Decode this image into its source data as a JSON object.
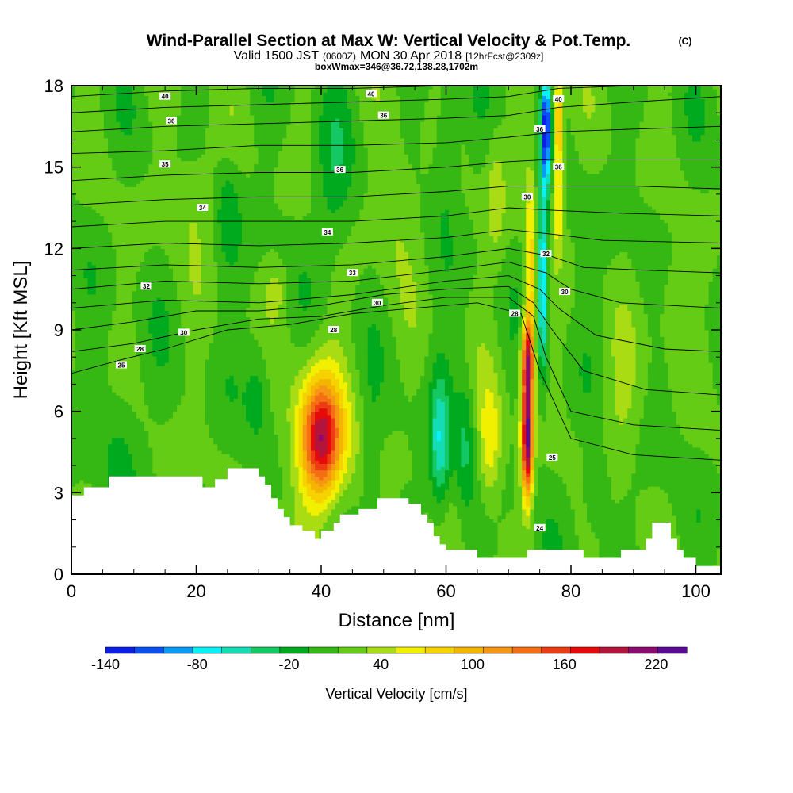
{
  "chart_data": {
    "type": "heatmap",
    "title": "Wind-Parallel Section at Max W: Vertical Velocity & Pot.Temp.",
    "title_mark": "(C)",
    "subtitle_prefix": "Valid 1500 JST",
    "subtitle_utc": "(0600Z)",
    "subtitle_date": "MON 30 Apr 2018",
    "subtitle_fcst": "[12hrFcst@2309z]",
    "subtitle2": "boxWmax=346@36.72,138.28,1702m",
    "xlabel": "Distance [nm]",
    "ylabel": "Height [Kft MSL]",
    "xlim": [
      0,
      104
    ],
    "ylim": [
      0,
      18
    ],
    "x_ticks": [
      "0",
      "20",
      "40",
      "60",
      "80",
      "100"
    ],
    "y_ticks": [
      "0",
      "3",
      "6",
      "9",
      "12",
      "15",
      "18"
    ],
    "colorbar": {
      "label": "Vertical Velocity [cm/s]",
      "tick_labels": [
        "-140",
        "-80",
        "-20",
        "40",
        "100",
        "160",
        "220"
      ],
      "levels": [
        -140,
        -120,
        -100,
        -80,
        -60,
        -40,
        -20,
        0,
        20,
        40,
        60,
        80,
        100,
        120,
        140,
        160,
        180,
        200,
        220,
        240
      ],
      "colors": [
        "#0a1ee6",
        "#0a50f0",
        "#0a9bf5",
        "#0af0f5",
        "#14dcb4",
        "#14c864",
        "#00aa1e",
        "#36b814",
        "#64cc14",
        "#aadc14",
        "#f0f000",
        "#f5d200",
        "#f5b400",
        "#f59614",
        "#f56e14",
        "#ec3c14",
        "#e60a0a",
        "#b4143c",
        "#8c0a6e",
        "#5a0a96"
      ]
    },
    "terrain_kft": [
      [
        0,
        2.9
      ],
      [
        2,
        3.2
      ],
      [
        6,
        3.6
      ],
      [
        20,
        3.6
      ],
      [
        21,
        3.2
      ],
      [
        23,
        3.5
      ],
      [
        25,
        3.9
      ],
      [
        29,
        3.9
      ],
      [
        30,
        3.6
      ],
      [
        31,
        3.3
      ],
      [
        32,
        2.8
      ],
      [
        33,
        2.4
      ],
      [
        34,
        2.1
      ],
      [
        35,
        1.8
      ],
      [
        37,
        1.6
      ],
      [
        39,
        1.3
      ],
      [
        40,
        1.6
      ],
      [
        42,
        1.9
      ],
      [
        43,
        2.2
      ],
      [
        46,
        2.4
      ],
      [
        49,
        2.8
      ],
      [
        52,
        2.8
      ],
      [
        54,
        2.6
      ],
      [
        56,
        2.2
      ],
      [
        57,
        1.9
      ],
      [
        58,
        1.4
      ],
      [
        59,
        1.1
      ],
      [
        60,
        0.9
      ],
      [
        64,
        0.9
      ],
      [
        65,
        0.6
      ],
      [
        72,
        0.6
      ],
      [
        73,
        0.9
      ],
      [
        81,
        0.9
      ],
      [
        82,
        0.6
      ],
      [
        87,
        0.6
      ],
      [
        88,
        0.9
      ],
      [
        92,
        1.3
      ],
      [
        93,
        1.9
      ],
      [
        95,
        1.9
      ],
      [
        96,
        1.3
      ],
      [
        97,
        0.9
      ],
      [
        98,
        0.6
      ],
      [
        100,
        0.3
      ],
      [
        104,
        0.3
      ]
    ],
    "contour_labels": [
      {
        "text": "40",
        "x": 15,
        "y": 17.6
      },
      {
        "text": "40",
        "x": 48,
        "y": 17.7
      },
      {
        "text": "40",
        "x": 78,
        "y": 17.5
      },
      {
        "text": "36",
        "x": 16,
        "y": 16.7
      },
      {
        "text": "36",
        "x": 50,
        "y": 16.9
      },
      {
        "text": "36",
        "x": 75,
        "y": 16.4
      },
      {
        "text": "35",
        "x": 15,
        "y": 15.1
      },
      {
        "text": "36",
        "x": 43,
        "y": 14.9
      },
      {
        "text": "36",
        "x": 78,
        "y": 15.0
      },
      {
        "text": "34",
        "x": 21,
        "y": 13.5
      },
      {
        "text": "34",
        "x": 41,
        "y": 12.6
      },
      {
        "text": "30",
        "x": 73,
        "y": 13.9
      },
      {
        "text": "32",
        "x": 76,
        "y": 11.8
      },
      {
        "text": "32",
        "x": 12,
        "y": 10.6
      },
      {
        "text": "33",
        "x": 45,
        "y": 11.1
      },
      {
        "text": "30",
        "x": 49,
        "y": 10.0
      },
      {
        "text": "30",
        "x": 79,
        "y": 10.4
      },
      {
        "text": "28",
        "x": 71,
        "y": 9.6
      },
      {
        "text": "30",
        "x": 18,
        "y": 8.9
      },
      {
        "text": "28",
        "x": 42,
        "y": 9.0
      },
      {
        "text": "28",
        "x": 11,
        "y": 8.3
      },
      {
        "text": "25",
        "x": 8,
        "y": 7.7
      },
      {
        "text": "25",
        "x": 77,
        "y": 4.3
      },
      {
        "text": "24",
        "x": 75,
        "y": 1.7
      }
    ],
    "theta_lines": [
      [
        [
          0,
          7.4
        ],
        [
          8,
          7.9
        ],
        [
          15,
          8.3
        ],
        [
          25,
          9.0
        ],
        [
          35,
          9.2
        ],
        [
          45,
          9.6
        ],
        [
          55,
          9.8
        ],
        [
          65,
          10.0
        ],
        [
          72,
          9.6
        ],
        [
          75,
          7.5
        ],
        [
          80,
          5.0
        ],
        [
          90,
          4.4
        ],
        [
          104,
          4.2
        ]
      ],
      [
        [
          0,
          8.2
        ],
        [
          10,
          8.5
        ],
        [
          20,
          9.0
        ],
        [
          30,
          9.4
        ],
        [
          40,
          9.5
        ],
        [
          50,
          9.9
        ],
        [
          60,
          10.2
        ],
        [
          70,
          10.2
        ],
        [
          74,
          9.5
        ],
        [
          76,
          8.0
        ],
        [
          80,
          6.0
        ],
        [
          90,
          5.5
        ],
        [
          104,
          5.3
        ]
      ],
      [
        [
          0,
          9.0
        ],
        [
          10,
          9.3
        ],
        [
          20,
          9.7
        ],
        [
          30,
          9.7
        ],
        [
          40,
          9.9
        ],
        [
          50,
          10.3
        ],
        [
          60,
          10.5
        ],
        [
          70,
          10.6
        ],
        [
          74,
          10.0
        ],
        [
          77,
          9.0
        ],
        [
          82,
          7.5
        ],
        [
          92,
          6.8
        ],
        [
          104,
          6.6
        ]
      ],
      [
        [
          0,
          9.8
        ],
        [
          15,
          10.1
        ],
        [
          30,
          10.0
        ],
        [
          45,
          10.3
        ],
        [
          60,
          10.8
        ],
        [
          70,
          11.0
        ],
        [
          75,
          10.5
        ],
        [
          78,
          9.8
        ],
        [
          84,
          8.8
        ],
        [
          95,
          8.3
        ],
        [
          104,
          8.2
        ]
      ],
      [
        [
          0,
          10.5
        ],
        [
          15,
          10.8
        ],
        [
          30,
          10.7
        ],
        [
          45,
          10.8
        ],
        [
          60,
          11.2
        ],
        [
          70,
          11.5
        ],
        [
          76,
          11.1
        ],
        [
          80,
          10.5
        ],
        [
          88,
          10.0
        ],
        [
          104,
          9.8
        ]
      ],
      [
        [
          0,
          11.2
        ],
        [
          15,
          11.4
        ],
        [
          30,
          11.3
        ],
        [
          45,
          11.4
        ],
        [
          60,
          11.7
        ],
        [
          70,
          12.0
        ],
        [
          77,
          11.7
        ],
        [
          82,
          11.3
        ],
        [
          92,
          11.2
        ],
        [
          104,
          11.1
        ]
      ],
      [
        [
          0,
          12.0
        ],
        [
          15,
          12.2
        ],
        [
          30,
          12.1
        ],
        [
          45,
          12.2
        ],
        [
          60,
          12.4
        ],
        [
          70,
          12.7
        ],
        [
          78,
          12.5
        ],
        [
          85,
          12.3
        ],
        [
          104,
          12.2
        ]
      ],
      [
        [
          0,
          12.8
        ],
        [
          15,
          13.0
        ],
        [
          30,
          13.0
        ],
        [
          45,
          13.0
        ],
        [
          60,
          13.2
        ],
        [
          70,
          13.5
        ],
        [
          78,
          13.4
        ],
        [
          88,
          13.3
        ],
        [
          104,
          13.2
        ]
      ],
      [
        [
          0,
          13.6
        ],
        [
          15,
          13.8
        ],
        [
          30,
          13.9
        ],
        [
          45,
          13.9
        ],
        [
          60,
          14.1
        ],
        [
          70,
          14.3
        ],
        [
          78,
          14.3
        ],
        [
          90,
          14.3
        ],
        [
          104,
          14.2
        ]
      ],
      [
        [
          0,
          14.5
        ],
        [
          15,
          14.7
        ],
        [
          30,
          14.8
        ],
        [
          45,
          14.8
        ],
        [
          60,
          15.0
        ],
        [
          70,
          15.2
        ],
        [
          78,
          15.3
        ],
        [
          90,
          15.3
        ],
        [
          104,
          15.3
        ]
      ],
      [
        [
          0,
          15.5
        ],
        [
          15,
          15.6
        ],
        [
          30,
          15.8
        ],
        [
          45,
          15.8
        ],
        [
          60,
          15.9
        ],
        [
          70,
          16.1
        ],
        [
          78,
          16.3
        ],
        [
          90,
          16.4
        ],
        [
          104,
          16.5
        ]
      ],
      [
        [
          0,
          16.3
        ],
        [
          15,
          16.5
        ],
        [
          30,
          16.6
        ],
        [
          45,
          16.7
        ],
        [
          60,
          16.8
        ],
        [
          70,
          16.9
        ],
        [
          78,
          17.2
        ],
        [
          90,
          17.4
        ],
        [
          104,
          17.6
        ]
      ],
      [
        [
          0,
          17.0
        ],
        [
          15,
          17.2
        ],
        [
          30,
          17.3
        ],
        [
          45,
          17.4
        ],
        [
          60,
          17.5
        ],
        [
          70,
          17.6
        ],
        [
          78,
          17.9
        ],
        [
          90,
          18.0
        ]
      ],
      [
        [
          0,
          17.6
        ],
        [
          15,
          17.8
        ],
        [
          30,
          17.9
        ],
        [
          45,
          17.9
        ],
        [
          60,
          18.0
        ]
      ]
    ],
    "w_cells": [
      {
        "x": 40,
        "y": 5.0,
        "sx": 3.0,
        "sy": 2.0,
        "w": 140
      },
      {
        "x": 40,
        "y": 5.0,
        "sx": 5.0,
        "sy": 3.0,
        "w": 60
      },
      {
        "x": 73,
        "y": 5.0,
        "sx": 0.9,
        "sy": 2.2,
        "w": 220
      },
      {
        "x": 73,
        "y": 8.0,
        "sx": 1.0,
        "sy": 1.5,
        "w": 150
      },
      {
        "x": 73.5,
        "y": 11.0,
        "sx": 0.9,
        "sy": 4.0,
        "w": 70
      },
      {
        "x": 75.5,
        "y": 11.0,
        "sx": 0.8,
        "sy": 3.5,
        "w": -110
      },
      {
        "x": 76,
        "y": 16.5,
        "sx": 0.8,
        "sy": 2.0,
        "w": -140
      },
      {
        "x": 78,
        "y": 16.5,
        "sx": 0.8,
        "sy": 2.0,
        "w": 100
      },
      {
        "x": 78,
        "y": 13.5,
        "sx": 0.8,
        "sy": 1.5,
        "w": 60
      },
      {
        "x": 67,
        "y": 4.8,
        "sx": 1.8,
        "sy": 2.2,
        "w": 60
      },
      {
        "x": 59,
        "y": 4.8,
        "sx": 1.6,
        "sy": 2.5,
        "w": -70
      },
      {
        "x": 63,
        "y": 4.8,
        "sx": 1.5,
        "sy": 2.8,
        "w": -35
      },
      {
        "x": 48,
        "y": 4.0,
        "sx": 1.5,
        "sy": 2.5,
        "w": -25
      },
      {
        "x": 52,
        "y": 13.5,
        "sx": 4.0,
        "sy": 2.5,
        "w": 25
      },
      {
        "x": 20,
        "y": 14.0,
        "sx": 4.0,
        "sy": 2.2,
        "w": 25
      },
      {
        "x": 25,
        "y": 13.5,
        "sx": 2.0,
        "sy": 2.0,
        "w": -30
      },
      {
        "x": 42,
        "y": 14.5,
        "sx": 3.0,
        "sy": 3.0,
        "w": -30
      },
      {
        "x": 30,
        "y": 7.0,
        "sx": 2.0,
        "sy": 2.0,
        "w": -30
      },
      {
        "x": 88,
        "y": 6.0,
        "sx": 3.0,
        "sy": 2.5,
        "w": 25
      },
      {
        "x": 96,
        "y": 10.0,
        "sx": 3.0,
        "sy": 2.0,
        "w": 25
      },
      {
        "x": 84,
        "y": 3.0,
        "sx": 2.0,
        "sy": 1.5,
        "w": -30
      },
      {
        "x": 8,
        "y": 5.0,
        "sx": 3.0,
        "sy": 3.0,
        "w": -20
      },
      {
        "x": 60,
        "y": 15.5,
        "sx": 2.0,
        "sy": 2.5,
        "w": -30
      },
      {
        "x": 33,
        "y": 10.5,
        "sx": 2.0,
        "sy": 1.0,
        "w": 25
      },
      {
        "x": 68,
        "y": 14.0,
        "sx": 1.5,
        "sy": 2.5,
        "w": 30
      }
    ]
  }
}
